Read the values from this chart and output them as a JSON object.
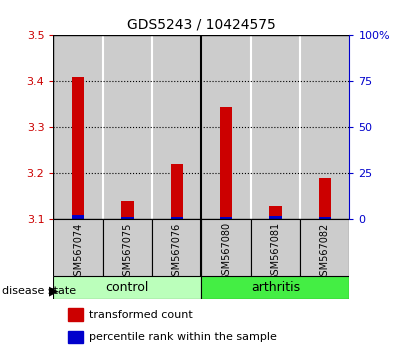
{
  "title": "GDS5243 / 10424575",
  "samples": [
    "GSM567074",
    "GSM567075",
    "GSM567076",
    "GSM567080",
    "GSM567081",
    "GSM567082"
  ],
  "red_values": [
    3.41,
    3.14,
    3.22,
    3.345,
    3.13,
    3.19
  ],
  "blue_values": [
    2.5,
    1.2,
    1.2,
    1.2,
    2.0,
    1.2
  ],
  "y_min": 3.1,
  "y_max": 3.5,
  "y_ticks": [
    3.1,
    3.2,
    3.3,
    3.4,
    3.5
  ],
  "y2_ticks": [
    0,
    25,
    50,
    75,
    100
  ],
  "y2_tick_labels": [
    "0",
    "25",
    "50",
    "75",
    "100%"
  ],
  "groups": [
    {
      "label": "control",
      "indices": [
        0,
        1,
        2
      ],
      "color": "#bbffbb"
    },
    {
      "label": "arthritis",
      "indices": [
        3,
        4,
        5
      ],
      "color": "#44ee44"
    }
  ],
  "group_label": "disease state",
  "red_color": "#cc0000",
  "blue_color": "#0000cc",
  "bar_bg_color": "#cccccc",
  "plot_bg_color": "#ffffff",
  "legend_red": "transformed count",
  "legend_blue": "percentile rank within the sample",
  "tick_color_left": "#cc0000",
  "tick_color_right": "#0000cc",
  "bar_width": 0.25
}
